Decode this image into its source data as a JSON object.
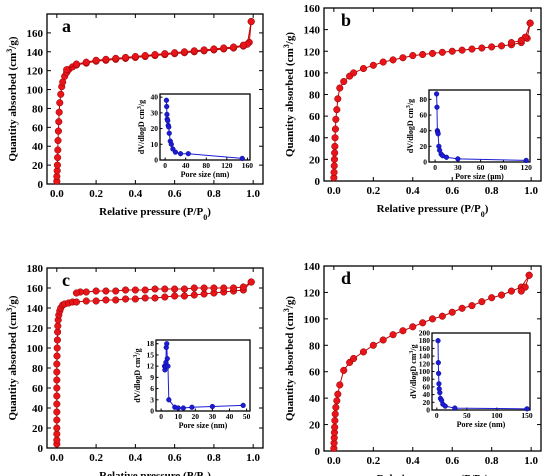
{
  "figure": {
    "x_axis_label": "Relative pressure (P/P",
    "x_axis_label_sub": "0",
    "x_axis_label_end": ")",
    "y_axis_label": "Quantity absorbed (cm",
    "y_axis_label_sup": "3",
    "y_axis_label_end": "/g)",
    "inset_x_label": "Pore size (nm)",
    "inset_y_label": "dV/dlogD cm",
    "inset_y_label_sup": "3",
    "inset_y_label_end": "/g",
    "colors": {
      "isotherm": "#e8141a",
      "isotherm_line": "#c00000",
      "psd": "#1c1cd6",
      "psd_line": "#1c1cd6"
    }
  },
  "chart_data": [
    {
      "panel": "a",
      "type": "scatter",
      "xlim": [
        -0.05,
        1.05
      ],
      "ylim": [
        0,
        180
      ],
      "x_ticks": [
        0.0,
        0.2,
        0.4,
        0.6,
        0.8,
        1.0
      ],
      "y_ticks": [
        0,
        20,
        40,
        60,
        80,
        100,
        120,
        140,
        160
      ],
      "adsorption": {
        "x": [
          0.0,
          0.0,
          0.002,
          0.003,
          0.004,
          0.005,
          0.006,
          0.008,
          0.01,
          0.012,
          0.015,
          0.02,
          0.025,
          0.03,
          0.04,
          0.05,
          0.06,
          0.08,
          0.1,
          0.15,
          0.2,
          0.25,
          0.3,
          0.35,
          0.4,
          0.45,
          0.5,
          0.55,
          0.6,
          0.65,
          0.7,
          0.75,
          0.8,
          0.85,
          0.9,
          0.95,
          0.98,
          0.99
        ],
        "y": [
          3,
          8,
          14,
          20,
          28,
          36,
          46,
          56,
          66,
          76,
          86,
          95,
          103,
          108,
          114,
          118,
          121,
          124,
          126,
          128,
          130,
          131,
          132,
          133,
          134,
          135,
          136,
          137,
          138,
          139,
          140,
          141,
          142,
          143,
          144,
          146,
          150,
          172
        ]
      },
      "desorption": {
        "x": [
          0.99,
          0.97,
          0.95,
          0.9,
          0.85,
          0.8,
          0.75,
          0.7,
          0.65,
          0.6,
          0.55,
          0.5,
          0.45,
          0.4,
          0.35,
          0.3,
          0.25,
          0.2,
          0.15,
          0.1,
          0.05
        ],
        "y": [
          172,
          148,
          147,
          145,
          144,
          143,
          142,
          141,
          140,
          139,
          138,
          137,
          136,
          135,
          134,
          133,
          132,
          131,
          129,
          127,
          121
        ]
      },
      "inset": {
        "xlim": [
          -10,
          165
        ],
        "ylim": [
          0,
          42
        ],
        "x_ticks": [
          0,
          40,
          80,
          120,
          160
        ],
        "y_ticks": [
          0,
          10,
          20,
          30,
          40
        ],
        "x": [
          2.5,
          3,
          3.5,
          4,
          5,
          6,
          7,
          8,
          10,
          12,
          15,
          20,
          30,
          45,
          150
        ],
        "y": [
          38,
          34,
          29,
          26,
          25,
          22,
          21,
          17,
          12,
          10,
          7,
          5,
          4,
          4,
          1
        ]
      }
    },
    {
      "panel": "b",
      "type": "scatter",
      "xlim": [
        -0.05,
        1.05
      ],
      "ylim": [
        0,
        160
      ],
      "x_ticks": [
        0.0,
        0.2,
        0.4,
        0.6,
        0.8,
        1.0
      ],
      "y_ticks": [
        0,
        20,
        40,
        60,
        80,
        100,
        120,
        140,
        160
      ],
      "adsorption": {
        "x": [
          0.0,
          0.001,
          0.002,
          0.003,
          0.004,
          0.005,
          0.006,
          0.008,
          0.01,
          0.015,
          0.02,
          0.03,
          0.05,
          0.08,
          0.1,
          0.15,
          0.2,
          0.25,
          0.3,
          0.35,
          0.4,
          0.45,
          0.5,
          0.55,
          0.6,
          0.65,
          0.7,
          0.75,
          0.8,
          0.85,
          0.9,
          0.95,
          0.98,
          0.995
        ],
        "y": [
          3,
          8,
          14,
          20,
          26,
          32,
          40,
          48,
          57,
          66,
          76,
          86,
          92,
          97,
          100,
          104,
          107,
          110,
          112,
          114,
          116,
          117,
          118,
          119,
          120,
          121,
          122,
          123,
          124,
          125,
          126,
          128,
          132,
          146
        ]
      },
      "desorption": {
        "x": [
          0.995,
          0.97,
          0.95,
          0.9
        ],
        "y": [
          146,
          133,
          130,
          128
        ]
      },
      "inset": {
        "xlim": [
          -8,
          125
        ],
        "ylim": [
          0,
          92
        ],
        "x_ticks": [
          0,
          30,
          60,
          90,
          120
        ],
        "y_ticks": [
          0,
          20,
          40,
          60,
          80
        ],
        "x": [
          2,
          2.5,
          3,
          3.5,
          4,
          5,
          6,
          8,
          10,
          15,
          30,
          120
        ],
        "y": [
          87,
          70,
          40,
          38,
          36,
          20,
          15,
          10,
          8,
          6,
          4,
          2
        ]
      }
    },
    {
      "panel": "c",
      "type": "scatter",
      "xlim": [
        -0.05,
        1.05
      ],
      "ylim": [
        0,
        180
      ],
      "x_ticks": [
        0.0,
        0.2,
        0.4,
        0.6,
        0.8,
        1.0
      ],
      "y_ticks": [
        0,
        20,
        40,
        60,
        80,
        100,
        120,
        140,
        160,
        180
      ],
      "adsorption": {
        "x": [
          0.0,
          0.0,
          0.0,
          0.0,
          0.0,
          0.0,
          0.0,
          0.0,
          0.0,
          0.0,
          0.0,
          0.0,
          0.001,
          0.002,
          0.003,
          0.004,
          0.005,
          0.007,
          0.01,
          0.015,
          0.02,
          0.03,
          0.04,
          0.06,
          0.08,
          0.1,
          0.15,
          0.2,
          0.25,
          0.3,
          0.35,
          0.4,
          0.45,
          0.5,
          0.55,
          0.6,
          0.65,
          0.7,
          0.75,
          0.8,
          0.85,
          0.9,
          0.95,
          0.99
        ],
        "y": [
          4,
          8,
          14,
          20,
          28,
          36,
          44,
          52,
          60,
          68,
          76,
          84,
          92,
          100,
          108,
          116,
          122,
          128,
          133,
          137,
          140,
          143,
          144,
          145,
          146,
          146,
          147,
          147,
          148,
          148,
          149,
          149,
          150,
          150,
          151,
          152,
          152,
          153,
          154,
          155,
          156,
          157,
          158,
          166
        ]
      },
      "desorption": {
        "x": [
          0.99,
          0.95,
          0.9,
          0.85,
          0.8,
          0.75,
          0.7,
          0.65,
          0.6,
          0.55,
          0.5,
          0.45,
          0.4,
          0.35,
          0.3,
          0.25,
          0.2,
          0.15,
          0.12,
          0.1
        ],
        "y": [
          166,
          161,
          160,
          160,
          160,
          160,
          160,
          159,
          159,
          159,
          159,
          158,
          158,
          158,
          157,
          157,
          157,
          156,
          156,
          155
        ]
      },
      "inset": {
        "xlim": [
          -3,
          52
        ],
        "ylim": [
          0,
          19
        ],
        "x_ticks": [
          0,
          10,
          20,
          30,
          40,
          50
        ],
        "y_ticks": [
          0,
          3,
          6,
          9,
          12,
          15,
          18
        ],
        "x": [
          2,
          2.2,
          2.5,
          2.8,
          3,
          3.3,
          3.6,
          4,
          4.5,
          8,
          10,
          13,
          18,
          30,
          48
        ],
        "y": [
          12,
          11,
          12,
          13,
          17,
          18,
          14,
          12,
          3,
          1,
          0.8,
          0.8,
          1,
          1.2,
          1.5
        ]
      }
    },
    {
      "panel": "d",
      "type": "scatter",
      "xlim": [
        -0.05,
        1.05
      ],
      "ylim": [
        0,
        140
      ],
      "x_ticks": [
        0.0,
        0.2,
        0.4,
        0.6,
        0.8,
        1.0
      ],
      "y_ticks": [
        0,
        20,
        40,
        60,
        80,
        100,
        120,
        140
      ],
      "adsorption": {
        "x": [
          0.0,
          0.001,
          0.002,
          0.003,
          0.004,
          0.005,
          0.007,
          0.01,
          0.015,
          0.02,
          0.03,
          0.05,
          0.08,
          0.1,
          0.15,
          0.2,
          0.25,
          0.3,
          0.35,
          0.4,
          0.45,
          0.5,
          0.55,
          0.6,
          0.65,
          0.7,
          0.75,
          0.8,
          0.85,
          0.9,
          0.95,
          0.99
        ],
        "y": [
          2,
          6,
          10,
          14,
          18,
          23,
          28,
          33,
          38,
          43,
          50,
          61,
          67,
          70,
          75,
          80,
          84,
          88,
          91,
          94,
          97,
          100,
          102,
          105,
          108,
          110,
          113,
          116,
          118,
          121,
          124,
          133
        ]
      },
      "desorption": {
        "x": [
          0.99,
          0.97,
          0.95
        ],
        "y": [
          133,
          124,
          121
        ]
      },
      "inset": {
        "xlim": [
          -8,
          155
        ],
        "ylim": [
          0,
          200
        ],
        "x_ticks": [
          0,
          50,
          100,
          150
        ],
        "y_ticks": [
          0,
          20,
          40,
          60,
          80,
          100,
          120,
          140,
          160,
          180,
          200
        ],
        "x": [
          2,
          2.5,
          3,
          3.5,
          4,
          5,
          6,
          8,
          10,
          14,
          30,
          150
        ],
        "y": [
          180,
          123,
          95,
          68,
          55,
          45,
          30,
          25,
          15,
          10,
          5,
          3
        ]
      }
    }
  ]
}
